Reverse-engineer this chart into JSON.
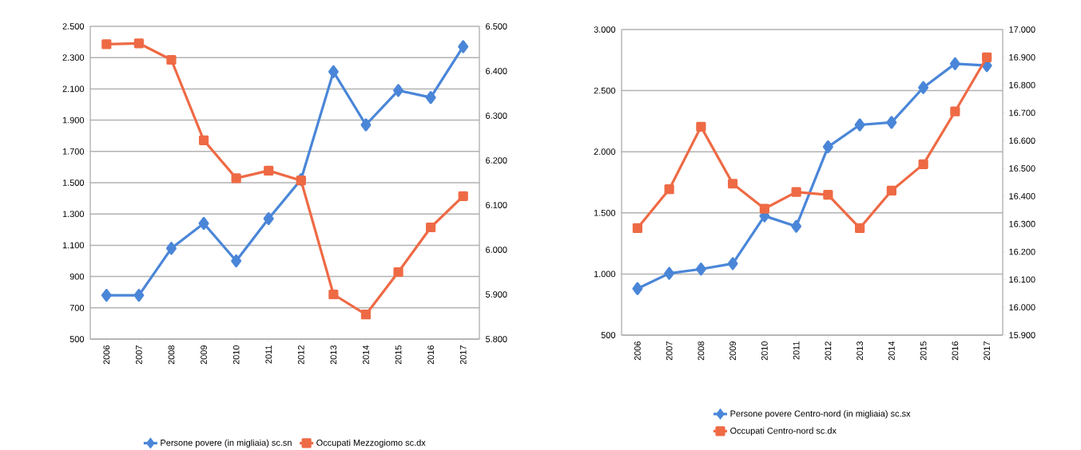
{
  "chart_data": [
    {
      "type": "line",
      "categories": [
        "2006",
        "2007",
        "2008",
        "2009",
        "2010",
        "2011",
        "2012",
        "2013",
        "2014",
        "2015",
        "2016",
        "2017"
      ],
      "series": [
        {
          "name": "Persone povere (in migliaia) sc.sn",
          "color": "#4a86d8",
          "marker": "diamond",
          "values": [
            780,
            780,
            1080,
            1240,
            1000,
            1270,
            1520,
            2210,
            1870,
            2090,
            2045,
            2370
          ]
        },
        {
          "name": "Occupati Mezzogiomo sc.dx",
          "color": "#ee6a45",
          "marker": "square",
          "axis": "y2",
          "values": [
            6460,
            6462,
            6425,
            6245,
            6160,
            6177,
            6155,
            5900,
            5855,
            5950,
            6050,
            6120
          ]
        }
      ],
      "ylim": [
        500,
        2500
      ],
      "yticks": [
        {
          "value": 500,
          "label": "500"
        },
        {
          "value": 700,
          "label": "700"
        },
        {
          "value": 900,
          "label": "900"
        },
        {
          "value": 1100,
          "label": "1.100"
        },
        {
          "value": 1300,
          "label": "1.300"
        },
        {
          "value": 1500,
          "label": "1.500"
        },
        {
          "value": 1700,
          "label": "1.700"
        },
        {
          "value": 1900,
          "label": "1.900"
        },
        {
          "value": 2100,
          "label": "2.100"
        },
        {
          "value": 2300,
          "label": "2.300"
        },
        {
          "value": 2500,
          "label": "2.500"
        }
      ],
      "y2lim": [
        5800,
        6500
      ],
      "y2ticks": [
        {
          "value": 5800,
          "label": "5.800"
        },
        {
          "value": 5900,
          "label": "5.900"
        },
        {
          "value": 6000,
          "label": "6.000"
        },
        {
          "value": 6100,
          "label": "6.100"
        },
        {
          "value": 6200,
          "label": "6.200"
        },
        {
          "value": 6300,
          "label": "6.300"
        },
        {
          "value": 6400,
          "label": "6.400"
        },
        {
          "value": 6500,
          "label": "6.500"
        }
      ],
      "grid": "y",
      "legend": "bottom"
    },
    {
      "type": "line",
      "categories": [
        "2006",
        "2007",
        "2008",
        "2009",
        "2010",
        "2011",
        "2012",
        "2013",
        "2014",
        "2015",
        "2016",
        "2017"
      ],
      "series": [
        {
          "name": "Persone povere Centro-nord (in migliaia) sc.sx",
          "color": "#4a86d8",
          "marker": "diamond",
          "values": [
            880,
            1005,
            1040,
            1085,
            1475,
            1390,
            2040,
            2220,
            2240,
            2525,
            2720,
            2705
          ]
        },
        {
          "name": "Occupati Centro-nord sc.dx",
          "color": "#ee6a45",
          "marker": "square",
          "axis": "y2",
          "values": [
            16285,
            16425,
            16650,
            16445,
            16355,
            16415,
            16405,
            16285,
            16420,
            16515,
            16705,
            16900
          ]
        }
      ],
      "ylim": [
        500,
        3000
      ],
      "yticks": [
        {
          "value": 500,
          "label": "500"
        },
        {
          "value": 1000,
          "label": "1.000"
        },
        {
          "value": 1500,
          "label": "1.500"
        },
        {
          "value": 2000,
          "label": "2.000"
        },
        {
          "value": 2500,
          "label": "2.500"
        },
        {
          "value": 3000,
          "label": "3.000"
        }
      ],
      "y2lim": [
        15900,
        17000
      ],
      "y2ticks": [
        {
          "value": 15900,
          "label": "15.900"
        },
        {
          "value": 16000,
          "label": "16.000"
        },
        {
          "value": 16100,
          "label": "16.100"
        },
        {
          "value": 16200,
          "label": "16.200"
        },
        {
          "value": 16300,
          "label": "16.300"
        },
        {
          "value": 16400,
          "label": "16.400"
        },
        {
          "value": 16500,
          "label": "16.500"
        },
        {
          "value": 16600,
          "label": "16.600"
        },
        {
          "value": 16700,
          "label": "16.700"
        },
        {
          "value": 16800,
          "label": "16.800"
        },
        {
          "value": 16900,
          "label": "16.900"
        },
        {
          "value": 17000,
          "label": "17.000"
        }
      ],
      "grid": "y",
      "legend": "bottom"
    }
  ]
}
